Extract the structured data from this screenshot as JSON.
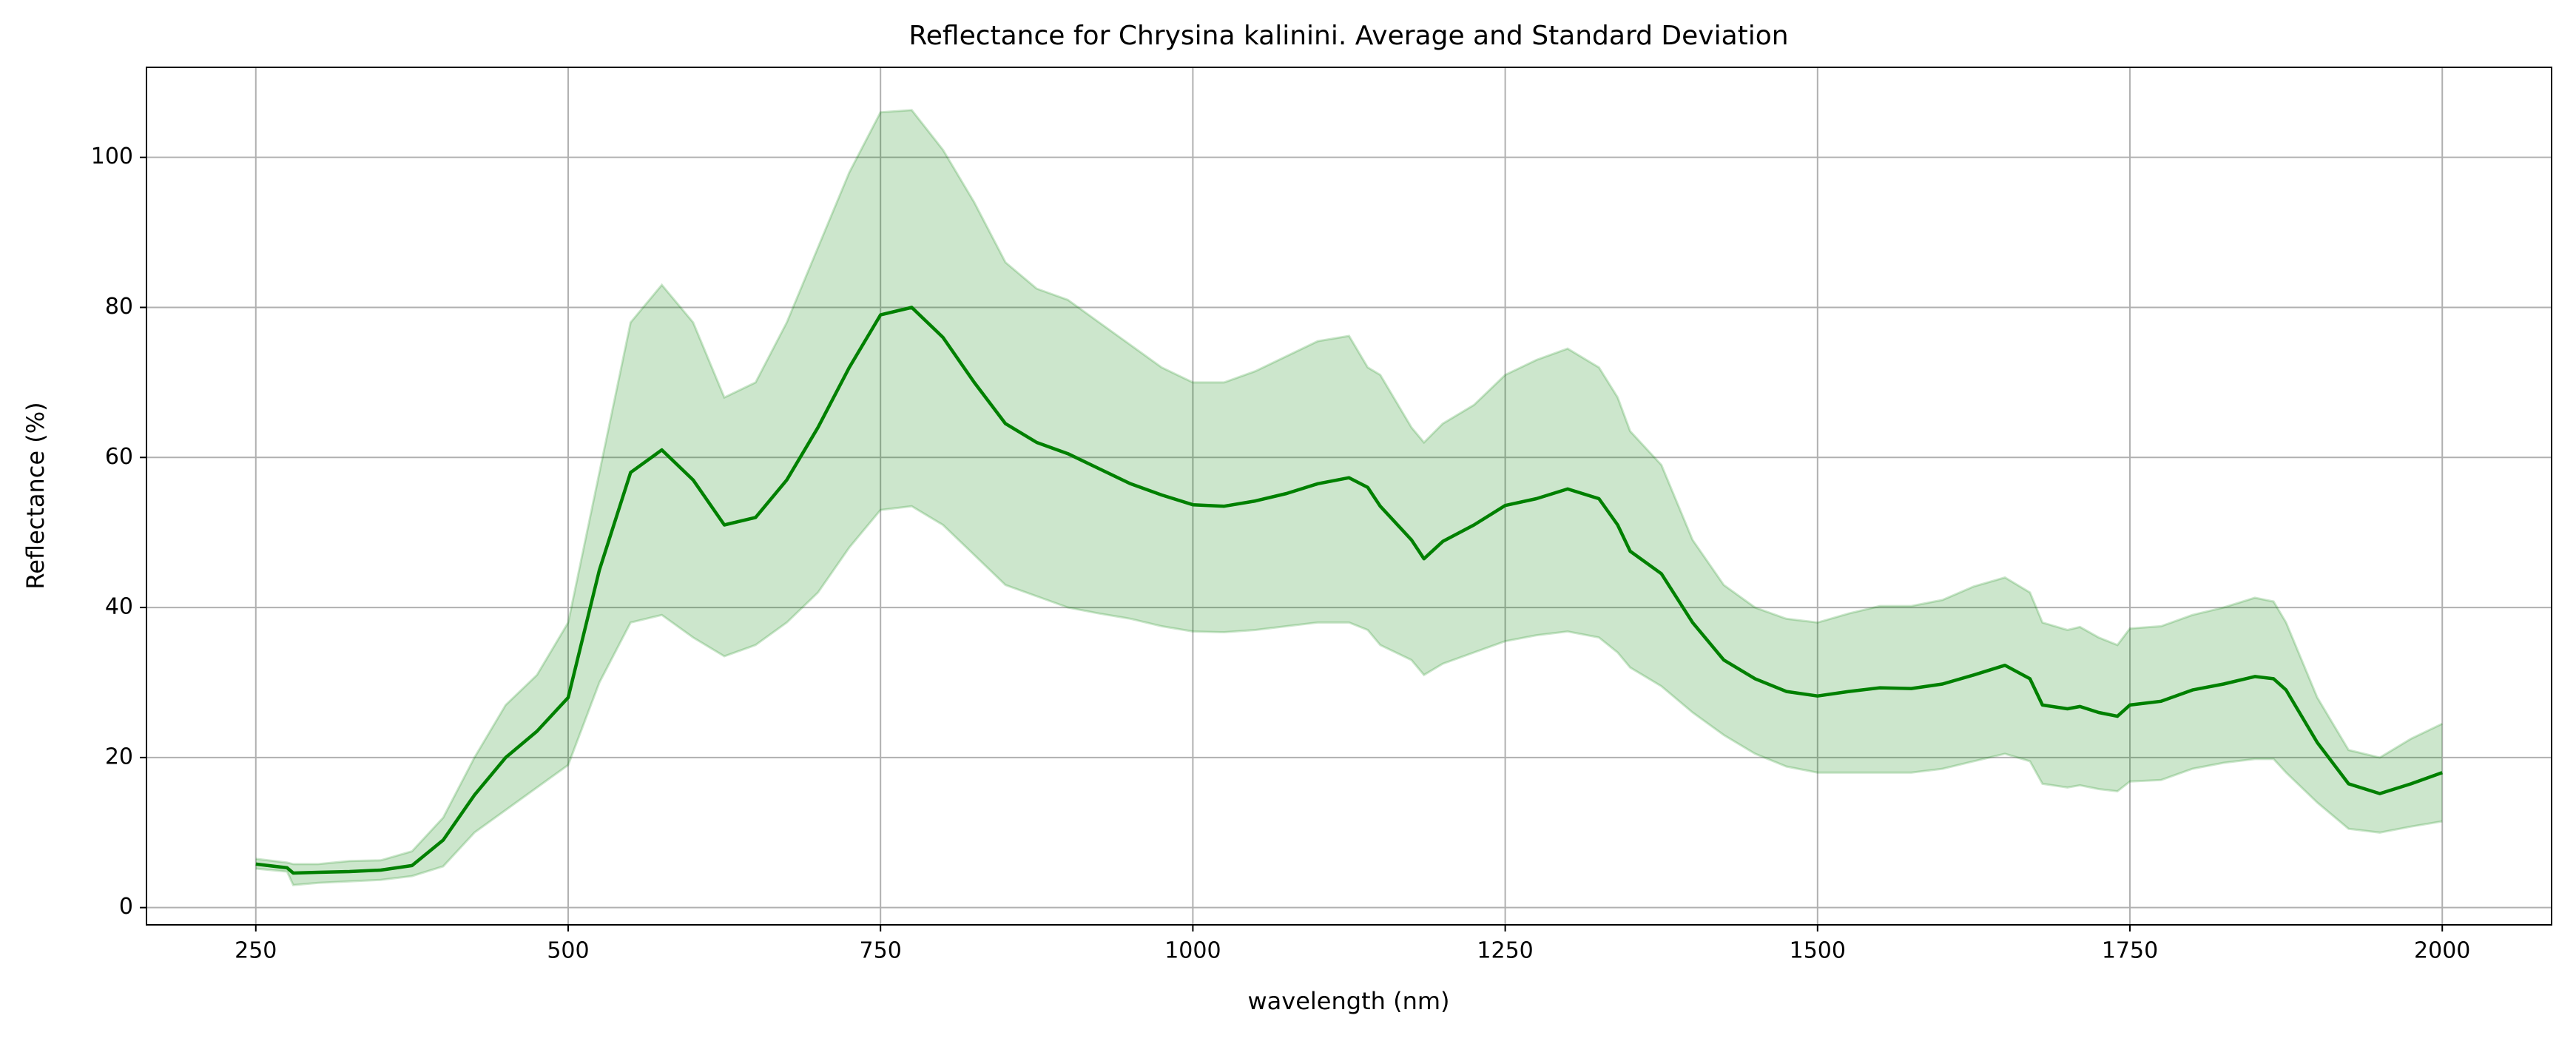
{
  "chart_data": {
    "type": "line_band",
    "title": "Reflectance for Chrysina kalinini. Average and Standard Deviation",
    "xlabel": "wavelength (nm)",
    "ylabel": "Reflectance (%)",
    "x": [
      250,
      275,
      280,
      300,
      325,
      350,
      375,
      400,
      425,
      450,
      475,
      500,
      525,
      550,
      575,
      600,
      625,
      650,
      675,
      700,
      725,
      750,
      775,
      800,
      825,
      850,
      875,
      900,
      925,
      950,
      975,
      1000,
      1025,
      1050,
      1075,
      1100,
      1125,
      1140,
      1150,
      1175,
      1185,
      1200,
      1225,
      1250,
      1275,
      1300,
      1325,
      1340,
      1350,
      1375,
      1400,
      1425,
      1450,
      1475,
      1500,
      1525,
      1550,
      1575,
      1600,
      1625,
      1650,
      1670,
      1680,
      1700,
      1710,
      1725,
      1740,
      1750,
      1775,
      1800,
      1825,
      1850,
      1865,
      1875,
      1900,
      1925,
      1950,
      1975,
      2000
    ],
    "values": [
      5.8,
      5.3,
      4.6,
      4.7,
      4.8,
      5.0,
      5.6,
      9,
      15,
      20,
      23.5,
      28,
      45,
      58,
      61,
      57,
      51,
      52,
      57,
      64,
      72,
      79,
      80,
      76,
      70,
      64.5,
      62,
      60.5,
      58.5,
      56.5,
      55,
      53.7,
      53.5,
      54.2,
      55.2,
      56.5,
      57.3,
      56,
      53.5,
      49,
      46.5,
      48.8,
      51,
      53.6,
      54.5,
      55.8,
      54.5,
      51,
      47.5,
      44.5,
      38,
      33,
      30.5,
      28.8,
      28.2,
      28.8,
      29.3,
      29.2,
      29.8,
      31,
      32.3,
      30.5,
      27,
      26.5,
      26.8,
      26,
      25.5,
      27,
      27.5,
      29,
      29.8,
      30.8,
      30.5,
      29,
      22,
      16.5,
      15.2,
      16.5,
      18
    ],
    "upper": [
      6.5,
      6,
      5.8,
      5.8,
      6.2,
      6.3,
      7.5,
      12,
      20,
      27,
      31,
      38,
      58,
      78,
      83,
      78,
      68,
      70,
      78,
      88,
      98,
      106,
      106.3,
      101,
      94,
      86,
      82.5,
      81,
      78,
      75,
      72,
      70,
      70,
      71.5,
      73.5,
      75.5,
      76.2,
      72,
      71,
      64,
      62,
      64.5,
      67,
      71,
      73,
      74.5,
      72,
      68,
      63.5,
      59,
      49,
      43,
      40,
      38.5,
      38,
      39.2,
      40.2,
      40.2,
      41,
      42.8,
      44,
      42,
      38,
      37,
      37.4,
      36,
      35,
      37.2,
      37.5,
      39,
      40,
      41.3,
      40.8,
      38,
      28,
      21,
      20,
      22.5,
      24.5
    ],
    "lower": [
      5.2,
      4.8,
      3,
      3.3,
      3.5,
      3.7,
      4.2,
      5.5,
      10,
      13,
      16,
      19,
      30,
      38,
      39,
      36,
      33.5,
      35,
      38,
      42,
      48,
      53,
      53.5,
      51,
      47,
      43,
      41.5,
      40,
      39.2,
      38.5,
      37.5,
      36.8,
      36.7,
      37,
      37.5,
      38,
      38,
      37,
      35,
      33,
      31,
      32.5,
      34,
      35.5,
      36.3,
      36.8,
      36,
      34,
      32,
      29.5,
      26,
      23,
      20.5,
      18.8,
      18,
      18,
      18,
      18,
      18.5,
      19.5,
      20.5,
      19.5,
      16.5,
      16,
      16.3,
      15.8,
      15.5,
      16.8,
      17,
      18.5,
      19.3,
      19.8,
      19.8,
      18,
      14,
      10.5,
      10,
      10.8,
      11.5
    ],
    "color": "#008000",
    "band_color": "#008000",
    "band_opacity": 0.2,
    "xlim": [
      162.5,
      2087.5
    ],
    "xticks": [
      250,
      500,
      750,
      1000,
      1250,
      1500,
      1750,
      2000
    ],
    "ylim": [
      -2.3,
      112
    ],
    "yticks": [
      0,
      20,
      40,
      60,
      80,
      100
    ],
    "grid": true
  }
}
